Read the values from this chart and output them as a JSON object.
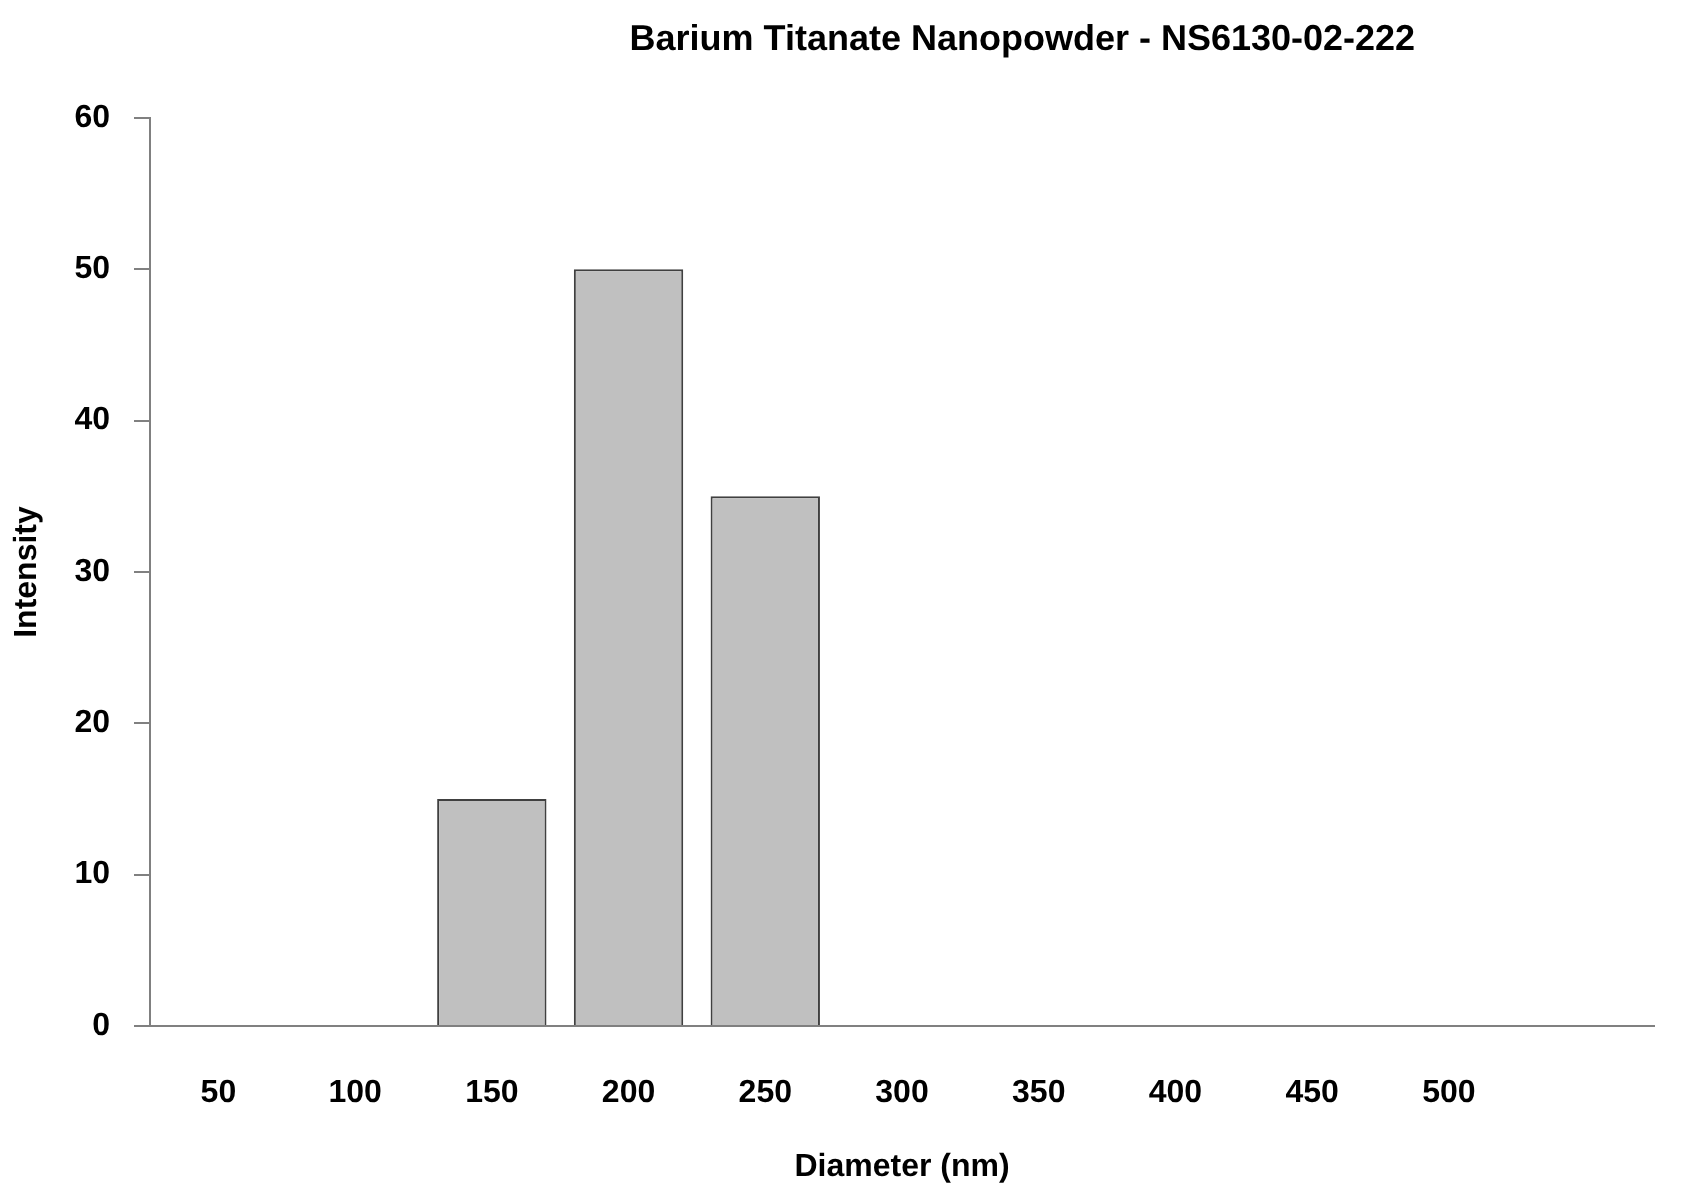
{
  "chart_data": {
    "type": "bar",
    "title": "Barium Titanate Nanopowder - NS6130-02-222",
    "xlabel": "Diameter (nm)",
    "ylabel": "Intensity",
    "categories": [
      "50",
      "100",
      "150",
      "200",
      "250",
      "300",
      "350",
      "400",
      "450",
      "500",
      null
    ],
    "values": [
      0,
      0,
      15,
      50,
      35,
      0,
      0,
      0,
      0,
      0,
      0
    ],
    "color": "#c0c0c0",
    "ylim": [
      0,
      60
    ],
    "yticks": [
      0,
      10,
      20,
      30,
      40,
      50,
      60
    ],
    "grid": false,
    "legend": false
  }
}
